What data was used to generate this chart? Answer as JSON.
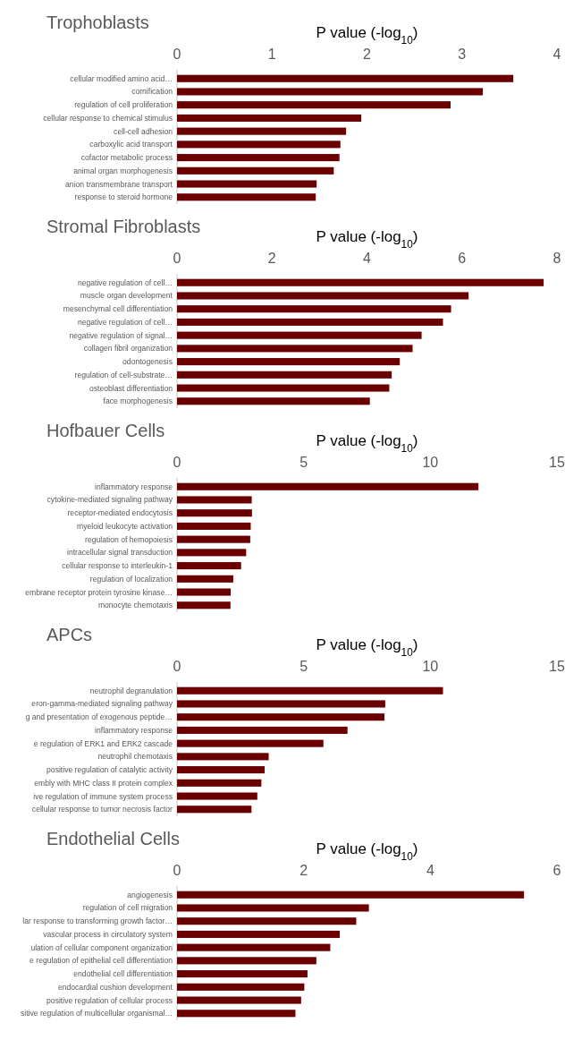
{
  "chart_data": [
    {
      "type": "bar",
      "orientation": "horizontal",
      "title": "Trophoblasts",
      "xlabel": "P value (-log$_{10}$)",
      "categories": [
        "cellular modified amino acid…",
        "cornification",
        "regulation of cell proliferation",
        "cellular response to chemical stimulus",
        "cell-cell adhesion",
        "carboxylic acid transport",
        "cofactor metabolic process",
        "animal organ morphogenesis",
        "anion transmembrane transport",
        "response to steroid hormone"
      ],
      "values": [
        3.54,
        3.22,
        2.88,
        1.94,
        1.78,
        1.72,
        1.71,
        1.65,
        1.47,
        1.46
      ],
      "color": "#6b0000",
      "xlim": [
        0,
        4
      ],
      "xticks": [
        0,
        1,
        2,
        3,
        4
      ]
    },
    {
      "type": "bar",
      "orientation": "horizontal",
      "title": "Stromal Fibroblasts",
      "xlabel": "P value (-log$_{10}$)",
      "categories": [
        "negative regulation of cell…",
        "muscle organ development",
        "mesenchymal cell differentiation",
        "negative regulation of cell…",
        "negative regulation of signal…",
        "collagen fibril organization",
        "odontogenesis",
        "regulation of cell-substrate…",
        "osteoblast differentiation",
        "face morphogenesis"
      ],
      "values": [
        7.72,
        6.14,
        5.77,
        5.6,
        5.15,
        4.96,
        4.69,
        4.52,
        4.47,
        4.06
      ],
      "color": "#6b0000",
      "xlim": [
        0,
        8
      ],
      "xticks": [
        0,
        2,
        4,
        6,
        8
      ]
    },
    {
      "type": "bar",
      "orientation": "horizontal",
      "title": "Hofbauer Cells",
      "xlabel": "P value (-log$_{10}$)",
      "categories": [
        "inflammatory response",
        "cytokine-mediated signaling pathway",
        "receptor-mediated endocytosis",
        "myeloid leukocyte activation",
        "regulation of hemopoiesis",
        "intracellular signal transduction",
        "cellular response to interleukin-1",
        "regulation of localization",
        "embrane receptor protein tyrosine kinase…",
        "monocyte chemotaxis"
      ],
      "values": [
        11.9,
        2.95,
        2.96,
        2.91,
        2.89,
        2.73,
        2.53,
        2.22,
        2.12,
        2.11
      ],
      "color": "#6b0000",
      "xlim": [
        0,
        15
      ],
      "xticks": [
        0,
        5,
        10,
        15
      ]
    },
    {
      "type": "bar",
      "orientation": "horizontal",
      "title": "APCs",
      "xlabel": "P value (-log$_{10}$)",
      "categories": [
        "neutrophil degranulation",
        "eron-gamma-mediated signaling pathway",
        "g and presentation of exogenous peptide…",
        "inflammatory response",
        "e regulation of ERK1 and ERK2 cascade",
        "neutrophil chemotaxis",
        "positive regulation of catalytic activity",
        "embly with MHC class II protein complex",
        "ive regulation of immune system process",
        "cellular response to tumor necrosis factor"
      ],
      "values": [
        10.5,
        8.22,
        8.19,
        6.73,
        5.78,
        3.62,
        3.46,
        3.33,
        3.17,
        2.94
      ],
      "color": "#6b0000",
      "xlim": [
        0,
        15
      ],
      "xticks": [
        0,
        5,
        10,
        15
      ]
    },
    {
      "type": "bar",
      "orientation": "horizontal",
      "title": "Endothelial Cells",
      "xlabel": "P value (-log$_{10}$)",
      "categories": [
        "angiogenesis",
        "regulation of cell migration",
        "lar response to transforming growth factor…",
        "vascular process in circulatory system",
        "ulation of cellular component organization",
        "e regulation of epithelial cell differentiation",
        "endothelial cell differentiation",
        "endocardial cushion development",
        "positive regulation of cellular process",
        "sitive regulation of multicellular organismal…"
      ],
      "values": [
        5.48,
        3.03,
        2.83,
        2.57,
        2.42,
        2.2,
        2.06,
        2.01,
        1.96,
        1.87
      ],
      "color": "#6b0000",
      "xlim": [
        0,
        6
      ],
      "xticks": [
        0,
        2,
        4,
        6
      ]
    }
  ]
}
